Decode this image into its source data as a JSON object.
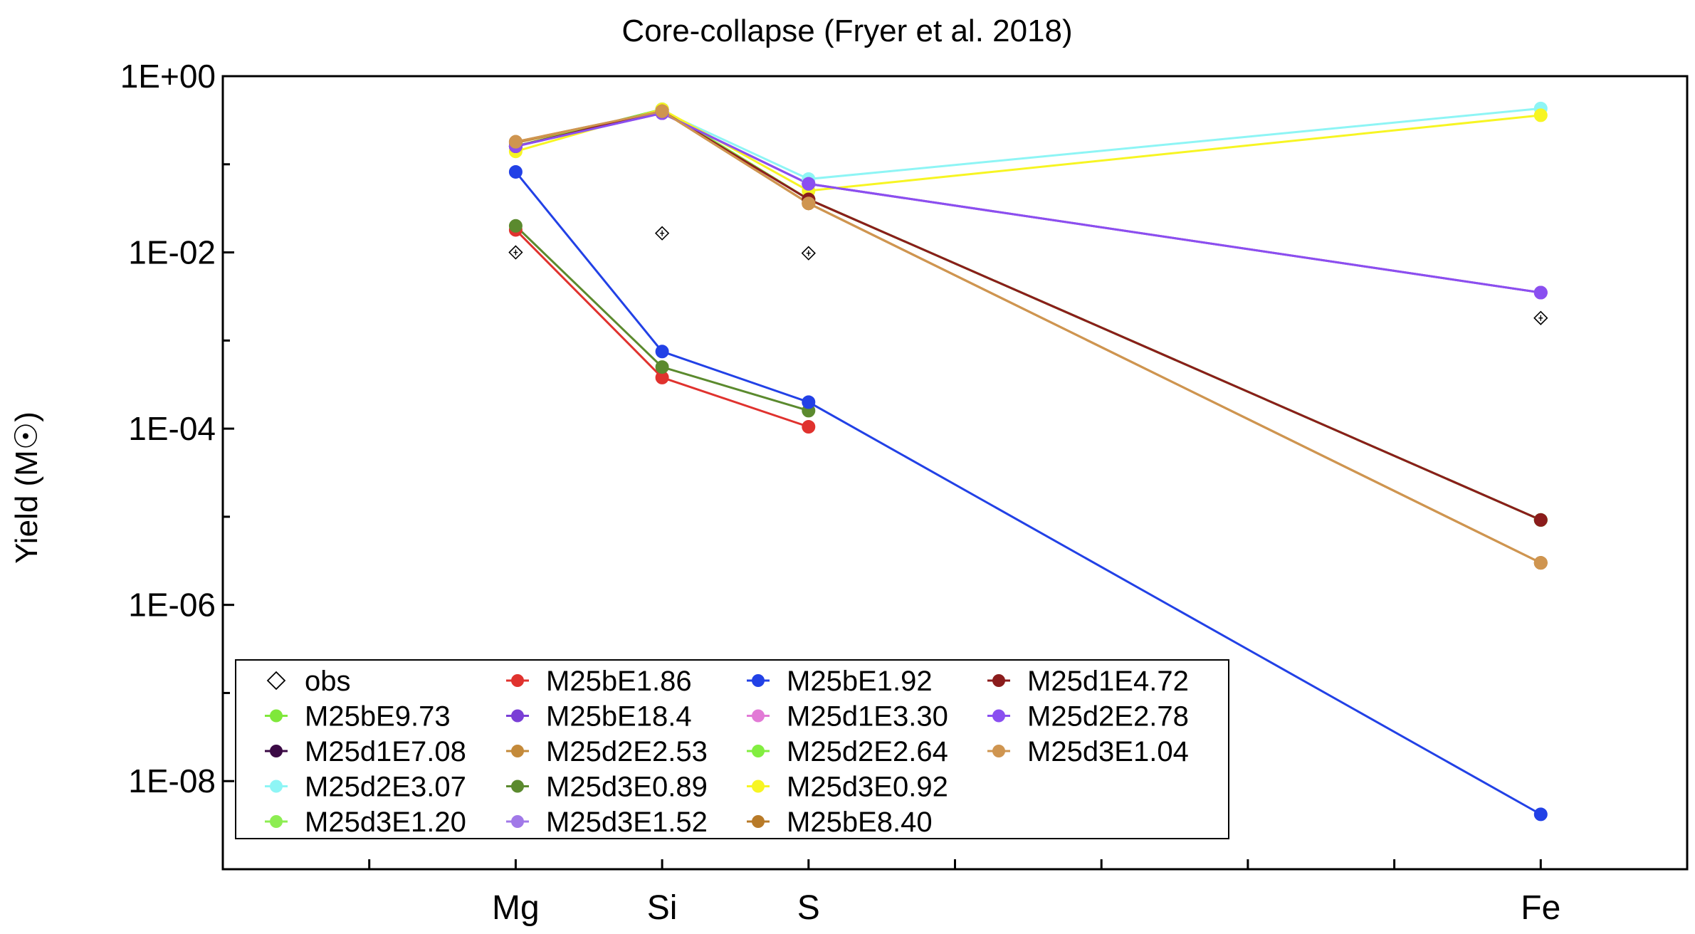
{
  "chart_data": {
    "type": "line",
    "title": "Core-collapse (Fryer et al. 2018)",
    "ylabel": "Yield (M☉)",
    "xlabel": "",
    "yscale": "log",
    "ylim": [
      1e-09,
      1
    ],
    "x_categories": [
      {
        "label": "Mg",
        "pos": 3
      },
      {
        "label": "Si",
        "pos": 4
      },
      {
        "label": "S",
        "pos": 5
      },
      {
        "label": "Fe",
        "pos": 10
      }
    ],
    "xlim": [
      1,
      11
    ],
    "y_ticks": [
      {
        "value": 1,
        "label": "1E+00"
      },
      {
        "value": 0.01,
        "label": "1E-02"
      },
      {
        "value": 0.0001,
        "label": "1E-04"
      },
      {
        "value": 1e-06,
        "label": "1E-06"
      },
      {
        "value": 1e-08,
        "label": "1E-08"
      }
    ],
    "legend_position": "bottom-left",
    "obs": {
      "name": "obs",
      "points": [
        {
          "x": 3,
          "y": 0.01
        },
        {
          "x": 4,
          "y": 0.0165
        },
        {
          "x": 5,
          "y": 0.0098
        },
        {
          "x": 10,
          "y": 0.0018
        }
      ]
    },
    "series": [
      {
        "name": "M25bE9.73",
        "color": "#7fe83a",
        "x": [
          3,
          4,
          5,
          10
        ],
        "values": [
          0.16,
          0.42,
          0.04,
          9.2e-06
        ]
      },
      {
        "name": "M25d1E7.08",
        "color": "#3b0a45",
        "x": [
          3,
          4,
          5,
          10
        ],
        "values": [
          0.16,
          0.42,
          0.04,
          9.2e-06
        ]
      },
      {
        "name": "M25d2E3.07",
        "color": "#8ef5f5",
        "x": [
          3,
          4,
          5,
          10
        ],
        "values": [
          0.16,
          0.4,
          0.068,
          0.43
        ]
      },
      {
        "name": "M25d3E1.20",
        "color": "#8ded52",
        "x": [
          3,
          4,
          5,
          10
        ],
        "values": [
          0.16,
          0.42,
          0.04,
          9.2e-06
        ]
      },
      {
        "name": "M25bE1.86",
        "color": "#e0322e",
        "x": [
          3,
          4,
          5
        ],
        "values": [
          0.018,
          0.00038,
          0.000105
        ]
      },
      {
        "name": "M25bE18.4",
        "color": "#7a3fd6",
        "x": [
          3,
          4,
          5,
          10
        ],
        "values": [
          0.16,
          0.38,
          0.06,
          0.0035
        ]
      },
      {
        "name": "M25d2E2.53",
        "color": "#c48a3a",
        "x": [
          3,
          4,
          5,
          10
        ],
        "values": [
          0.175,
          0.4,
          0.036,
          3e-06
        ]
      },
      {
        "name": "M25d3E0.89",
        "color": "#5b8a2e",
        "x": [
          3,
          4,
          5
        ],
        "values": [
          0.02,
          0.0005,
          0.00016
        ]
      },
      {
        "name": "M25d3E1.52",
        "color": "#a179e8",
        "x": [
          3,
          4,
          5,
          10
        ],
        "values": [
          0.16,
          0.38,
          0.06,
          0.0035
        ]
      },
      {
        "name": "M25bE1.92",
        "color": "#2241e6",
        "x": [
          3,
          4,
          5,
          10
        ],
        "values": [
          0.082,
          0.00075,
          0.0002,
          4.2e-09
        ]
      },
      {
        "name": "M25d1E3.30",
        "color": "#e27ad6",
        "x": [
          3,
          4,
          5,
          10
        ],
        "values": [
          0.16,
          0.38,
          0.06,
          0.0035
        ]
      },
      {
        "name": "M25d2E2.64",
        "color": "#82ee40",
        "x": [
          3,
          4,
          5,
          10
        ],
        "values": [
          0.16,
          0.42,
          0.04,
          9.2e-06
        ]
      },
      {
        "name": "M25d3E0.92",
        "color": "#f7f523",
        "x": [
          3,
          4,
          5,
          10
        ],
        "values": [
          0.14,
          0.42,
          0.05,
          0.36
        ]
      },
      {
        "name": "M25bE8.40",
        "color": "#b87a28",
        "x": [
          3,
          4,
          5,
          10
        ],
        "values": [
          0.18,
          0.4,
          0.036,
          3e-06
        ]
      },
      {
        "name": "M25d1E4.72",
        "color": "#8b1c1c",
        "x": [
          3,
          4,
          5,
          10
        ],
        "values": [
          0.16,
          0.4,
          0.04,
          9.2e-06
        ]
      },
      {
        "name": "M25d2E2.78",
        "color": "#8a4ff0",
        "x": [
          3,
          4,
          5,
          10
        ],
        "values": [
          0.16,
          0.38,
          0.06,
          0.0035
        ]
      },
      {
        "name": "M25d3E1.04",
        "color": "#cf9550",
        "x": [
          3,
          4,
          5,
          10
        ],
        "values": [
          0.18,
          0.4,
          0.036,
          3e-06
        ]
      }
    ]
  }
}
